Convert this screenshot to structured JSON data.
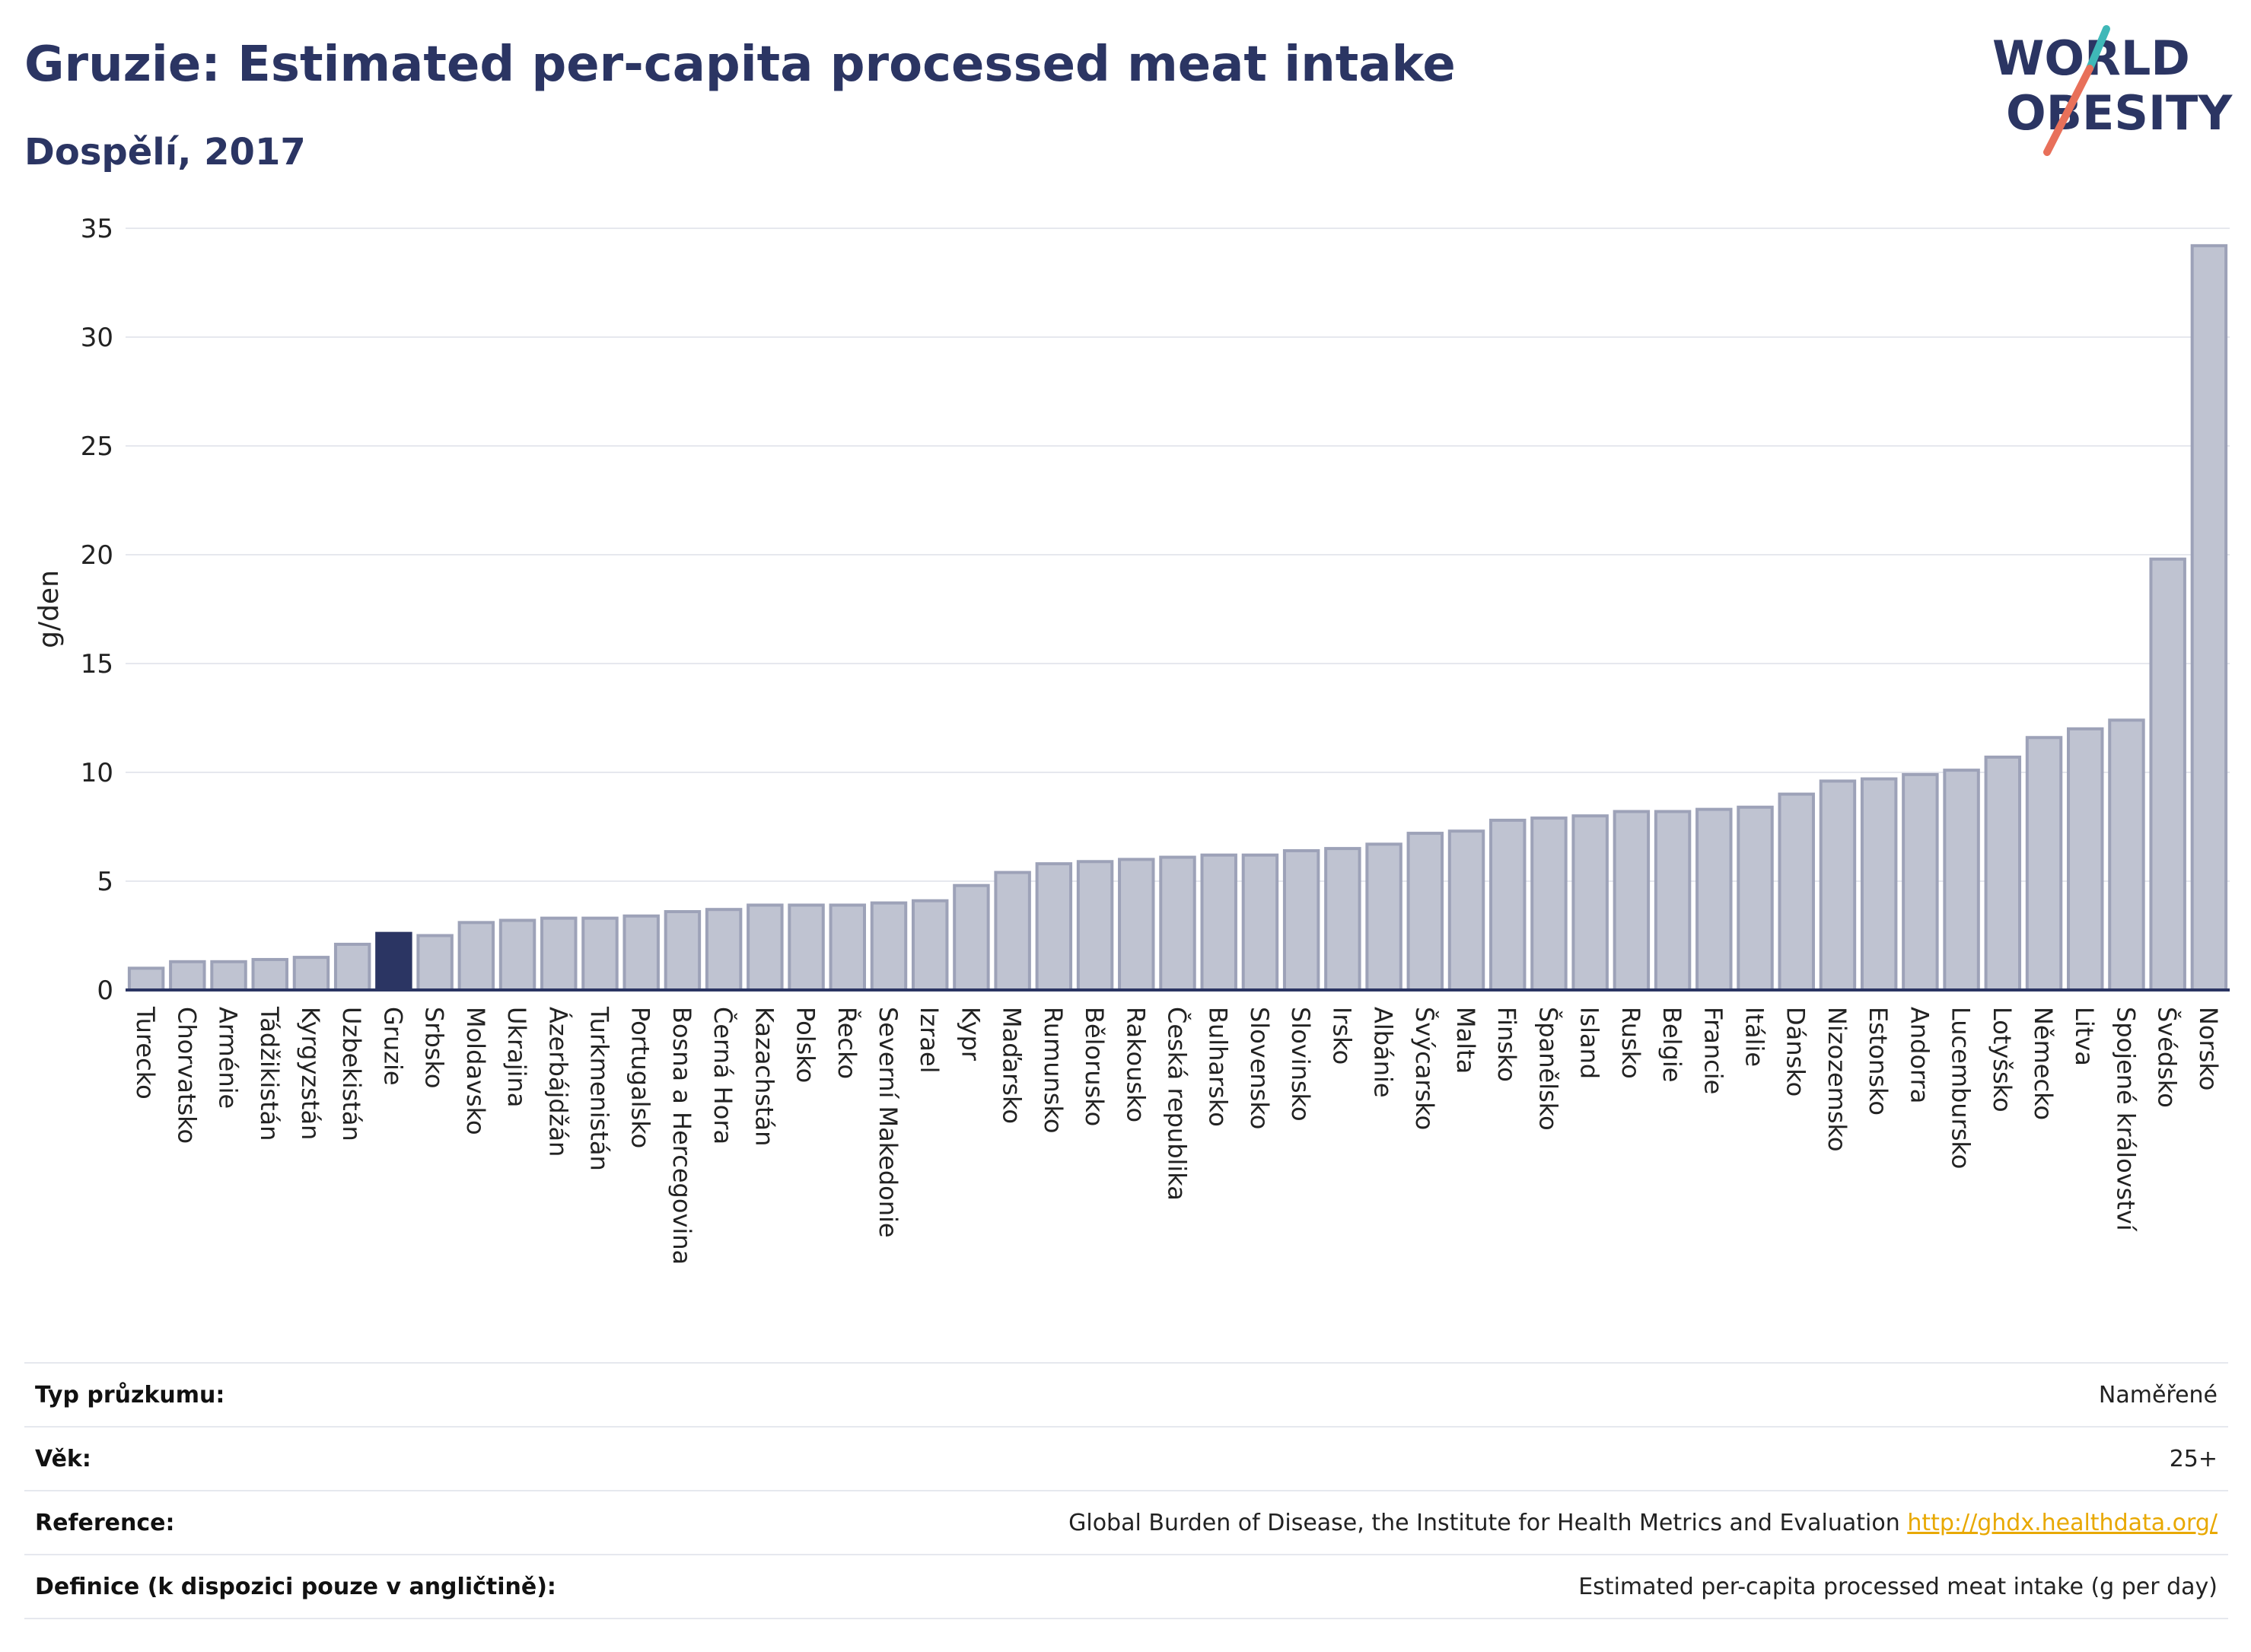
{
  "header": {
    "title": "Gruzie: Estimated per-capita processed meat intake",
    "subtitle": "Dospělí, 2017"
  },
  "logo": {
    "line1": "WORLD",
    "line2": "OBESITY",
    "colors": {
      "text": "#2b3563",
      "slash_red": "#e8705a",
      "slash_teal": "#3fb8b8"
    }
  },
  "chart_data": {
    "type": "bar",
    "ylabel": "g/den",
    "ylim": [
      0,
      35
    ],
    "yticks": [
      0,
      5,
      10,
      15,
      20,
      25,
      30,
      35
    ],
    "grid": true,
    "highlight": "Gruzie",
    "colors": {
      "bar": "#bfc3d1",
      "bar_edge": "#9da2b8",
      "highlight": "#2b3563"
    },
    "categories": [
      "Turecko",
      "Chorvatsko",
      "Arménie",
      "Tádžikistán",
      "Kyrgyzstán",
      "Uzbekistán",
      "Gruzie",
      "Srbsko",
      "Moldavsko",
      "Ukrajina",
      "Ázerbájdžán",
      "Turkmenistán",
      "Portugalsko",
      "Bosna a Hercegovina",
      "Černá Hora",
      "Kazachstán",
      "Polsko",
      "Řecko",
      "Severní Makedonie",
      "Izrael",
      "Kypr",
      "Maďarsko",
      "Rumunsko",
      "Bělorusko",
      "Rakousko",
      "Česká republika",
      "Bulharsko",
      "Slovensko",
      "Slovinsko",
      "Irsko",
      "Albánie",
      "Švýcarsko",
      "Malta",
      "Finsko",
      "Španělsko",
      "Island",
      "Rusko",
      "Belgie",
      "Francie",
      "Itálie",
      "Dánsko",
      "Nizozemsko",
      "Estonsko",
      "Andorra",
      "Lucembursko",
      "Lotyšsko",
      "Německo",
      "Litva",
      "Spojené království",
      "Švédsko",
      "Norsko"
    ],
    "values": [
      1.0,
      1.3,
      1.3,
      1.4,
      1.5,
      2.1,
      2.6,
      2.5,
      3.1,
      3.2,
      3.3,
      3.3,
      3.4,
      3.6,
      3.7,
      3.9,
      3.9,
      3.9,
      4.0,
      4.1,
      4.8,
      5.4,
      5.8,
      5.9,
      6.0,
      6.1,
      6.2,
      6.2,
      6.4,
      6.5,
      6.7,
      7.2,
      7.3,
      7.8,
      7.9,
      8.0,
      8.2,
      8.2,
      8.3,
      8.4,
      9.0,
      9.6,
      9.7,
      9.9,
      10.1,
      10.7,
      11.6,
      12.0,
      12.4,
      19.8,
      34.2
    ]
  },
  "meta": {
    "rows": [
      {
        "key": "Typ průzkumu:",
        "value": "Naměřené"
      },
      {
        "key": "Věk:",
        "value": "25+"
      },
      {
        "key": "Reference:",
        "value": "Global Burden of Disease, the Institute for Health Metrics and Evaluation",
        "link": "http://ghdx.healthdata.org/"
      },
      {
        "key": "Definice (k dispozici pouze v angličtině):",
        "value": "Estimated per-capita processed meat intake (g per day)"
      }
    ]
  }
}
